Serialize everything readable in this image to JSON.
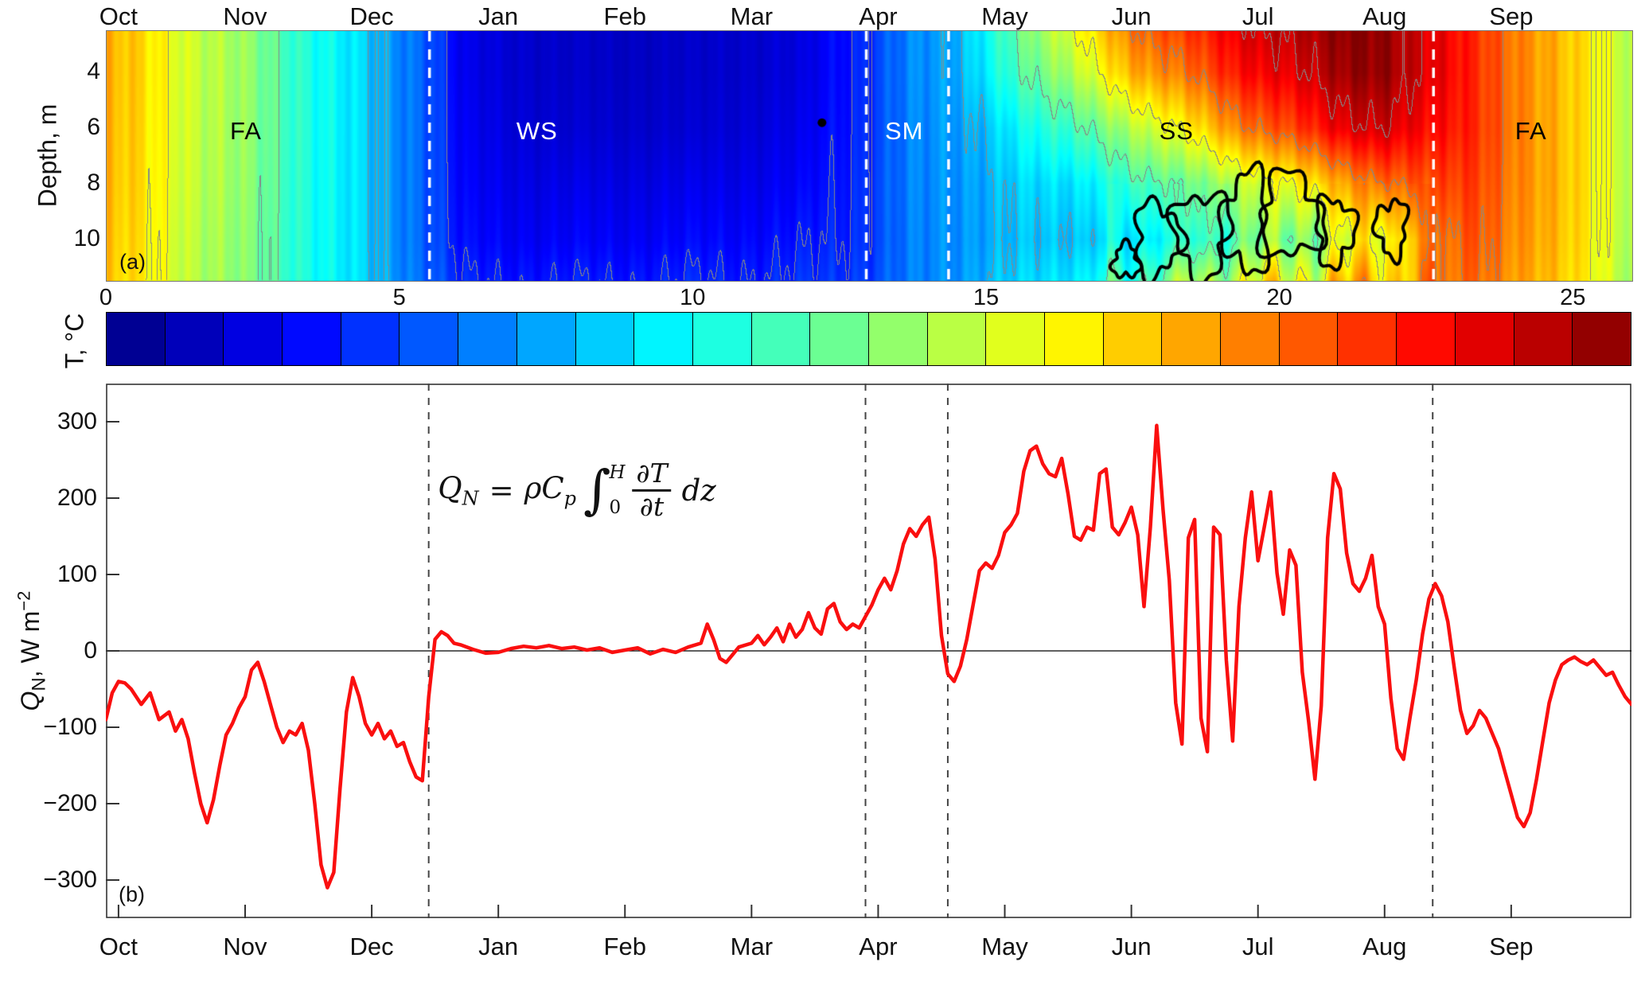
{
  "months": [
    "Oct",
    "Nov",
    "Dec",
    "Jan",
    "Feb",
    "Mar",
    "Apr",
    "May",
    "Jun",
    "Jul",
    "Aug",
    "Sep"
  ],
  "x_range_months": [
    -0.1,
    11.95
  ],
  "season_boundaries_months": [
    2.45,
    5.9,
    6.55,
    10.38
  ],
  "panel_a": {
    "tag": "(a)",
    "ylabel": "Depth, m",
    "yticks": [
      4,
      6,
      8,
      10
    ],
    "depth_range": [
      2.5,
      11.5
    ],
    "region_labels": [
      {
        "text": "FA",
        "month": 1.0,
        "depth": 6.1,
        "color": "#000000"
      },
      {
        "text": "WS",
        "month": 3.3,
        "depth": 6.1,
        "color": "#ffffff"
      },
      {
        "text": "SM",
        "month": 6.2,
        "depth": 6.1,
        "color": "#ffffff"
      },
      {
        "text": "SS",
        "month": 8.35,
        "depth": 6.1,
        "color": "#000000"
      },
      {
        "text": "FA",
        "month": 11.15,
        "depth": 6.1,
        "color": "#000000"
      }
    ]
  },
  "colorbar": {
    "label": "T, °C",
    "ticks": [
      0,
      5,
      10,
      15,
      20,
      25
    ],
    "clim": [
      0,
      26
    ],
    "cells": 26
  },
  "panel_b": {
    "tag": "(b)",
    "ylabel_parts": {
      "q": "Q",
      "n": "N",
      "mid": ", W m",
      "exp": "−2"
    },
    "yticks": [
      -300,
      -200,
      -100,
      0,
      100,
      200,
      300
    ],
    "y_range": [
      -350,
      350
    ],
    "line_color": "#fa0f0f",
    "equation": {
      "Q": "Q",
      "N": "N",
      "eq": "=",
      "rho": "ρ",
      "C": "C",
      "p": "p",
      "int": "∫",
      "H": "H",
      "zero": "0",
      "num": "∂T",
      "den": "∂t",
      "dz": "dz"
    }
  },
  "chart_data": [
    {
      "type": "heatmap",
      "ylabel": "Depth, m",
      "x_unit": "months from Oct 1",
      "colormap": "jet",
      "clim": [
        0,
        26
      ],
      "colorbar_label": "T, °C",
      "colorbar_ticks": [
        0,
        5,
        10,
        15,
        20,
        25
      ],
      "depth_range": [
        2.5,
        11.5
      ],
      "x": [
        -0.1,
        0.4,
        0.9,
        1.4,
        1.9,
        2.42,
        2.7,
        3.5,
        4.5,
        5.4,
        5.89,
        6.2,
        6.55,
        6.9,
        7.2,
        7.6,
        8.0,
        8.4,
        8.8,
        9.2,
        9.6,
        10.0,
        10.3,
        10.7,
        11.2,
        11.6,
        11.95
      ],
      "depths": [
        2.5,
        4,
        6,
        8,
        10,
        11.5
      ],
      "values": [
        [
          18.2,
          18.2,
          18.1,
          18.0,
          17.8,
          17.6
        ],
        [
          16.0,
          16.0,
          15.9,
          15.8,
          15.6,
          15.5
        ],
        [
          13.8,
          13.8,
          13.7,
          13.6,
          13.4,
          13.3
        ],
        [
          11.2,
          11.2,
          11.2,
          11.1,
          11.0,
          11.0
        ],
        [
          8.6,
          8.6,
          8.6,
          8.6,
          8.6,
          8.6
        ],
        [
          5.8,
          5.8,
          5.8,
          5.8,
          5.8,
          6.0
        ],
        [
          2.6,
          2.6,
          2.8,
          3.0,
          3.3,
          3.9
        ],
        [
          1.8,
          1.8,
          2.0,
          2.5,
          3.0,
          3.8
        ],
        [
          1.8,
          1.8,
          2.0,
          2.6,
          3.2,
          4.0
        ],
        [
          2.3,
          2.3,
          2.6,
          3.0,
          3.6,
          4.2
        ],
        [
          4.5,
          4.5,
          4.5,
          4.6,
          4.6,
          5.0
        ],
        [
          6.2,
          6.2,
          6.1,
          6.1,
          6.0,
          6.0
        ],
        [
          7.6,
          7.5,
          7.3,
          7.1,
          7.0,
          7.0
        ],
        [
          10.5,
          10.0,
          8.6,
          8.0,
          7.8,
          8.2
        ],
        [
          13.0,
          12.0,
          10.0,
          8.6,
          8.0,
          8.6
        ],
        [
          16.5,
          15.0,
          12.0,
          9.5,
          8.5,
          9.6
        ],
        [
          19.5,
          18.0,
          14.0,
          11.0,
          9.5,
          11.5
        ],
        [
          21.5,
          20.0,
          16.5,
          12.5,
          10.5,
          13.5
        ],
        [
          23.0,
          22.0,
          19.0,
          14.0,
          12.0,
          15.0
        ],
        [
          24.5,
          23.5,
          21.0,
          16.0,
          13.0,
          16.0
        ],
        [
          25.5,
          25.0,
          23.0,
          18.0,
          14.5,
          17.0
        ],
        [
          25.5,
          25.5,
          24.0,
          20.0,
          16.5,
          18.0
        ],
        [
          24.0,
          24.0,
          23.0,
          21.0,
          19.0,
          19.0
        ],
        [
          21.5,
          21.5,
          21.5,
          21.0,
          20.5,
          20.0
        ],
        [
          19.0,
          19.0,
          19.0,
          19.0,
          18.8,
          18.5
        ],
        [
          16.5,
          16.5,
          16.5,
          16.5,
          16.4,
          16.2
        ],
        [
          14.5,
          14.5,
          14.5,
          14.5,
          14.3,
          14.0
        ]
      ],
      "contour_levels_gray": [
        4,
        8,
        12,
        16,
        20,
        24
      ],
      "black_contour_blobs": [
        {
          "month": 7.95,
          "depth": 10.8,
          "rx": 0.1,
          "ry": 0.6
        },
        {
          "month": 8.2,
          "depth": 10.0,
          "rx": 0.18,
          "ry": 1.3
        },
        {
          "month": 8.55,
          "depth": 9.8,
          "rx": 0.22,
          "ry": 1.5
        },
        {
          "month": 8.9,
          "depth": 9.4,
          "rx": 0.18,
          "ry": 1.8
        },
        {
          "month": 9.25,
          "depth": 9.2,
          "rx": 0.25,
          "ry": 1.5
        },
        {
          "month": 9.6,
          "depth": 9.7,
          "rx": 0.15,
          "ry": 1.2
        },
        {
          "month": 10.05,
          "depth": 9.6,
          "rx": 0.12,
          "ry": 1.0
        }
      ],
      "dot_marker": {
        "month": 5.55,
        "depth": 5.8
      },
      "season_boundaries_months": [
        2.45,
        5.9,
        6.55,
        10.38
      ],
      "region_labels": [
        "FA",
        "WS",
        "SM",
        "SS",
        "FA"
      ]
    },
    {
      "type": "line",
      "name": "Q_N",
      "ylabel": "Q_N, W m^-2",
      "ylim": [
        -350,
        350
      ],
      "yticks": [
        -300,
        -200,
        -100,
        0,
        100,
        200,
        300
      ],
      "zero_line": true,
      "color": "#fa0f0f",
      "equation": "Q_N = ρ C_p ∫_0^H (∂T/∂t) dz",
      "season_boundaries_months": [
        2.45,
        5.9,
        6.55,
        10.38
      ],
      "x_months": [
        -0.1,
        -0.05,
        0,
        0.05,
        0.1,
        0.18,
        0.25,
        0.32,
        0.4,
        0.45,
        0.5,
        0.55,
        0.6,
        0.65,
        0.7,
        0.75,
        0.8,
        0.85,
        0.9,
        0.95,
        1,
        1.05,
        1.1,
        1.15,
        1.2,
        1.25,
        1.3,
        1.35,
        1.4,
        1.45,
        1.5,
        1.55,
        1.6,
        1.65,
        1.7,
        1.75,
        1.8,
        1.85,
        1.9,
        1.95,
        2,
        2.05,
        2.1,
        2.15,
        2.2,
        2.25,
        2.3,
        2.35,
        2.4,
        2.45,
        2.5,
        2.55,
        2.6,
        2.65,
        2.7,
        2.8,
        2.9,
        3,
        3.1,
        3.2,
        3.3,
        3.4,
        3.5,
        3.6,
        3.7,
        3.8,
        3.9,
        4,
        4.1,
        4.2,
        4.3,
        4.4,
        4.5,
        4.6,
        4.65,
        4.7,
        4.75,
        4.8,
        4.85,
        4.9,
        5,
        5.05,
        5.1,
        5.15,
        5.2,
        5.25,
        5.3,
        5.35,
        5.4,
        5.45,
        5.5,
        5.55,
        5.6,
        5.65,
        5.7,
        5.75,
        5.8,
        5.85,
        5.9,
        5.95,
        6,
        6.05,
        6.1,
        6.15,
        6.2,
        6.25,
        6.3,
        6.35,
        6.4,
        6.45,
        6.5,
        6.55,
        6.6,
        6.65,
        6.7,
        6.75,
        6.8,
        6.85,
        6.9,
        6.95,
        7,
        7.05,
        7.1,
        7.15,
        7.2,
        7.25,
        7.3,
        7.35,
        7.4,
        7.45,
        7.5,
        7.55,
        7.6,
        7.65,
        7.7,
        7.75,
        7.8,
        7.85,
        7.9,
        7.95,
        8,
        8.05,
        8.1,
        8.15,
        8.2,
        8.25,
        8.3,
        8.35,
        8.4,
        8.45,
        8.5,
        8.55,
        8.6,
        8.65,
        8.7,
        8.75,
        8.8,
        8.85,
        8.9,
        8.95,
        9,
        9.05,
        9.1,
        9.15,
        9.2,
        9.25,
        9.3,
        9.35,
        9.4,
        9.45,
        9.5,
        9.55,
        9.6,
        9.65,
        9.7,
        9.75,
        9.8,
        9.85,
        9.9,
        9.95,
        10,
        10.05,
        10.1,
        10.15,
        10.2,
        10.25,
        10.3,
        10.35,
        10.4,
        10.45,
        10.5,
        10.55,
        10.6,
        10.65,
        10.7,
        10.75,
        10.8,
        10.85,
        10.9,
        10.95,
        11,
        11.05,
        11.1,
        11.15,
        11.2,
        11.25,
        11.3,
        11.35,
        11.4,
        11.45,
        11.5,
        11.55,
        11.6,
        11.65,
        11.7,
        11.75,
        11.8,
        11.85,
        11.9,
        11.95
      ],
      "y": [
        -90,
        -55,
        -40,
        -42,
        -50,
        -70,
        -55,
        -90,
        -80,
        -105,
        -90,
        -115,
        -160,
        -200,
        -225,
        -195,
        -150,
        -110,
        -95,
        -75,
        -60,
        -25,
        -15,
        -40,
        -70,
        -100,
        -120,
        -105,
        -110,
        -95,
        -130,
        -200,
        -280,
        -310,
        -290,
        -180,
        -80,
        -35,
        -60,
        -95,
        -110,
        -95,
        -115,
        -105,
        -125,
        -120,
        -145,
        -165,
        -170,
        -60,
        15,
        25,
        20,
        10,
        8,
        2,
        -3,
        -2,
        3,
        6,
        4,
        7,
        3,
        5,
        1,
        4,
        -2,
        1,
        4,
        -4,
        2,
        -2,
        5,
        10,
        35,
        15,
        -10,
        -15,
        -5,
        5,
        10,
        20,
        8,
        18,
        30,
        12,
        35,
        18,
        28,
        50,
        30,
        22,
        55,
        62,
        38,
        28,
        35,
        30,
        45,
        60,
        80,
        95,
        80,
        105,
        140,
        160,
        150,
        165,
        175,
        120,
        20,
        -30,
        -40,
        -20,
        15,
        60,
        105,
        115,
        108,
        125,
        155,
        165,
        180,
        235,
        262,
        268,
        245,
        232,
        228,
        252,
        205,
        150,
        145,
        162,
        158,
        232,
        238,
        162,
        152,
        168,
        188,
        152,
        58,
        162,
        295,
        185,
        92,
        -68,
        -122,
        148,
        172,
        -88,
        -132,
        162,
        152,
        -12,
        -118,
        58,
        148,
        208,
        118,
        162,
        208,
        102,
        48,
        132,
        112,
        -28,
        -92,
        -168,
        -72,
        148,
        232,
        212,
        128,
        88,
        78,
        95,
        125,
        58,
        35,
        -62,
        -128,
        -142,
        -88,
        -38,
        22,
        68,
        88,
        72,
        38,
        -22,
        -78,
        -108,
        -98,
        -78,
        -88,
        -108,
        -128,
        -158,
        -188,
        -218,
        -230,
        -212,
        -168,
        -118,
        -68,
        -38,
        -18,
        -12,
        -8,
        -14,
        -18,
        -12,
        -22,
        -32,
        -28,
        -45,
        -60,
        -70,
        -90
      ]
    }
  ]
}
